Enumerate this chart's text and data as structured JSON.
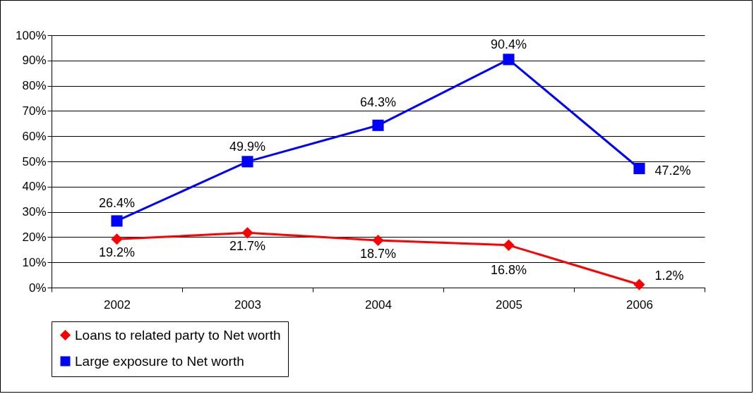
{
  "chart_data": {
    "type": "line",
    "categories": [
      "2002",
      "2003",
      "2004",
      "2005",
      "2006"
    ],
    "series": [
      {
        "name": "Loans to related party to Net worth",
        "color": "#ff0000",
        "marker": "diamond",
        "values": [
          19.2,
          21.7,
          18.7,
          16.8,
          1.2
        ],
        "value_labels": [
          "19.2%",
          "21.7%",
          "18.7%",
          "16.8%",
          "1.2%"
        ]
      },
      {
        "name": "Large exposure to Net worth",
        "color": "#0000ff",
        "marker": "square",
        "values": [
          26.4,
          49.9,
          64.3,
          90.4,
          47.2
        ],
        "value_labels": [
          "26.4%",
          "49.9%",
          "64.3%",
          "90.4%",
          "47.2%"
        ]
      }
    ],
    "ylim": [
      0,
      100
    ],
    "yticks": [
      {
        "value": 0,
        "label": "0%"
      },
      {
        "value": 10,
        "label": "10%"
      },
      {
        "value": 20,
        "label": "20%"
      },
      {
        "value": 30,
        "label": "30%"
      },
      {
        "value": 40,
        "label": "40%"
      },
      {
        "value": 50,
        "label": "50%"
      },
      {
        "value": 60,
        "label": "60%"
      },
      {
        "value": 70,
        "label": "70%"
      },
      {
        "value": 80,
        "label": "80%"
      },
      {
        "value": 90,
        "label": "90%"
      },
      {
        "value": 100,
        "label": "100%"
      }
    ],
    "grid": "y",
    "legend": "bottom",
    "line_style": "solid"
  }
}
